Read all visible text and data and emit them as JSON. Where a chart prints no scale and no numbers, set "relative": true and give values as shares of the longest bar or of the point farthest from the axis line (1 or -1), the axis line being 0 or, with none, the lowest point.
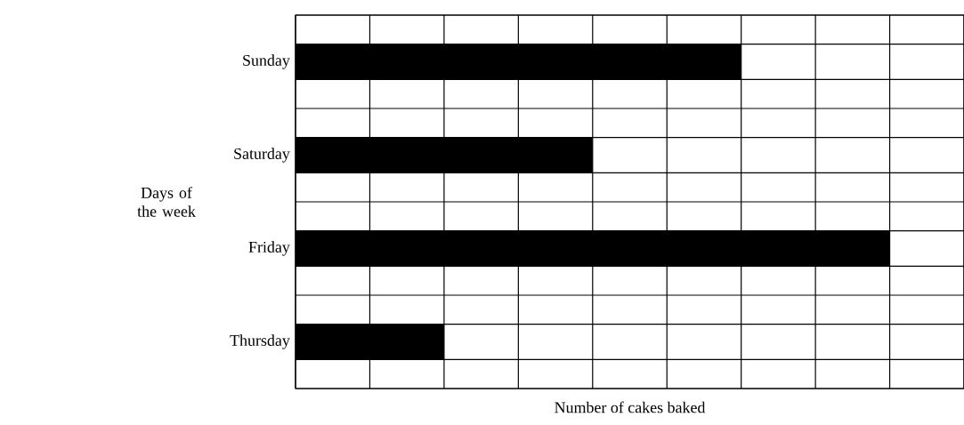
{
  "chart_data": {
    "type": "bar",
    "orientation": "horizontal",
    "relative": true,
    "grid": true,
    "color": "#000000",
    "categories": [
      "Sunday",
      "Saturday",
      "Friday",
      "Thursday"
    ],
    "values": [
      0.75,
      0.5,
      1,
      0.25
    ],
    "xlabel": "Number of cakes baked",
    "ylabel": "Days of the week"
  }
}
